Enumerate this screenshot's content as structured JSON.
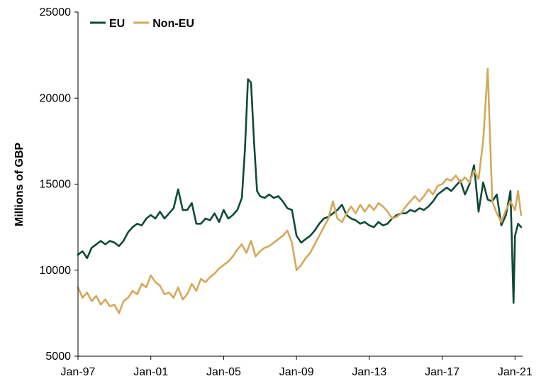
{
  "chart_data": {
    "type": "line",
    "title": "",
    "xlabel": "",
    "ylabel": "Millions of GBP",
    "ylim": [
      5000,
      25000
    ],
    "xlim": [
      "1997-01",
      "2021-06"
    ],
    "grid": false,
    "legend": "top-left",
    "x_ticks": [
      {
        "date": "1997-01",
        "label": "Jan-97"
      },
      {
        "date": "2001-01",
        "label": "Jan-01"
      },
      {
        "date": "2005-01",
        "label": "Jan-05"
      },
      {
        "date": "2009-01",
        "label": "Jan-09"
      },
      {
        "date": "2013-01",
        "label": "Jan-13"
      },
      {
        "date": "2017-01",
        "label": "Jan-17"
      },
      {
        "date": "2021-01",
        "label": "Jan-21"
      }
    ],
    "y_ticks": [
      {
        "value": 5000,
        "label": "5000"
      },
      {
        "value": 10000,
        "label": "10000"
      },
      {
        "value": 15000,
        "label": "15000"
      },
      {
        "value": 20000,
        "label": "20000"
      },
      {
        "value": 25000,
        "label": "25000"
      }
    ],
    "series": [
      {
        "name": "EU",
        "color": "#0d4a3a",
        "points": [
          [
            "1997-01",
            10900
          ],
          [
            "1997-04",
            11100
          ],
          [
            "1997-07",
            10700
          ],
          [
            "1997-10",
            11300
          ],
          [
            "1998-01",
            11500
          ],
          [
            "1998-04",
            11700
          ],
          [
            "1998-07",
            11500
          ],
          [
            "1998-10",
            11700
          ],
          [
            "1999-01",
            11600
          ],
          [
            "1999-04",
            11400
          ],
          [
            "1999-07",
            11700
          ],
          [
            "1999-10",
            12200
          ],
          [
            "2000-01",
            12500
          ],
          [
            "2000-04",
            12700
          ],
          [
            "2000-07",
            12600
          ],
          [
            "2000-10",
            13000
          ],
          [
            "2001-01",
            13200
          ],
          [
            "2001-04",
            13000
          ],
          [
            "2001-07",
            13400
          ],
          [
            "2001-10",
            13000
          ],
          [
            "2002-01",
            13300
          ],
          [
            "2002-04",
            13600
          ],
          [
            "2002-07",
            14700
          ],
          [
            "2002-10",
            13500
          ],
          [
            "2003-01",
            13500
          ],
          [
            "2003-04",
            13900
          ],
          [
            "2003-07",
            12700
          ],
          [
            "2003-10",
            12700
          ],
          [
            "2004-01",
            13000
          ],
          [
            "2004-04",
            12900
          ],
          [
            "2004-07",
            13300
          ],
          [
            "2004-10",
            12800
          ],
          [
            "2005-01",
            13500
          ],
          [
            "2005-04",
            13000
          ],
          [
            "2005-07",
            13200
          ],
          [
            "2005-10",
            13500
          ],
          [
            "2006-01",
            14200
          ],
          [
            "2006-03",
            17000
          ],
          [
            "2006-05",
            21100
          ],
          [
            "2006-07",
            20900
          ],
          [
            "2006-09",
            17500
          ],
          [
            "2006-11",
            14600
          ],
          [
            "2007-01",
            14300
          ],
          [
            "2007-04",
            14200
          ],
          [
            "2007-07",
            14400
          ],
          [
            "2007-10",
            14200
          ],
          [
            "2008-01",
            14300
          ],
          [
            "2008-04",
            14000
          ],
          [
            "2008-07",
            13600
          ],
          [
            "2008-10",
            13500
          ],
          [
            "2009-01",
            12000
          ],
          [
            "2009-04",
            11600
          ],
          [
            "2009-07",
            11800
          ],
          [
            "2009-10",
            12000
          ],
          [
            "2010-01",
            12300
          ],
          [
            "2010-04",
            12700
          ],
          [
            "2010-07",
            13000
          ],
          [
            "2010-10",
            13100
          ],
          [
            "2011-01",
            13300
          ],
          [
            "2011-04",
            13500
          ],
          [
            "2011-07",
            13800
          ],
          [
            "2011-10",
            13200
          ],
          [
            "2012-01",
            13000
          ],
          [
            "2012-04",
            12900
          ],
          [
            "2012-07",
            12700
          ],
          [
            "2012-10",
            12800
          ],
          [
            "2013-01",
            12600
          ],
          [
            "2013-04",
            12500
          ],
          [
            "2013-07",
            12800
          ],
          [
            "2013-10",
            12600
          ],
          [
            "2014-01",
            12700
          ],
          [
            "2014-04",
            13000
          ],
          [
            "2014-07",
            13200
          ],
          [
            "2014-10",
            13300
          ],
          [
            "2015-01",
            13300
          ],
          [
            "2015-04",
            13500
          ],
          [
            "2015-07",
            13400
          ],
          [
            "2015-10",
            13600
          ],
          [
            "2016-01",
            13500
          ],
          [
            "2016-04",
            13700
          ],
          [
            "2016-07",
            14000
          ],
          [
            "2016-10",
            14400
          ],
          [
            "2017-01",
            14600
          ],
          [
            "2017-04",
            14800
          ],
          [
            "2017-07",
            14600
          ],
          [
            "2017-10",
            14900
          ],
          [
            "2018-01",
            15200
          ],
          [
            "2018-04",
            14400
          ],
          [
            "2018-07",
            15000
          ],
          [
            "2018-10",
            16100
          ],
          [
            "2019-01",
            13400
          ],
          [
            "2019-04",
            15100
          ],
          [
            "2019-07",
            14100
          ],
          [
            "2019-10",
            14000
          ],
          [
            "2020-01",
            14400
          ],
          [
            "2020-04",
            12600
          ],
          [
            "2020-07",
            13200
          ],
          [
            "2020-10",
            14600
          ],
          [
            "2020-12",
            8100
          ],
          [
            "2021-01",
            12000
          ],
          [
            "2021-03",
            12700
          ],
          [
            "2021-05",
            12500
          ]
        ]
      },
      {
        "name": "Non-EU",
        "color": "#d4a85a",
        "points": [
          [
            "1997-01",
            9000
          ],
          [
            "1997-04",
            8400
          ],
          [
            "1997-07",
            8700
          ],
          [
            "1997-10",
            8200
          ],
          [
            "1998-01",
            8500
          ],
          [
            "1998-04",
            8000
          ],
          [
            "1998-07",
            8300
          ],
          [
            "1998-10",
            7900
          ],
          [
            "1999-01",
            8000
          ],
          [
            "1999-04",
            7500
          ],
          [
            "1999-07",
            8200
          ],
          [
            "1999-10",
            8400
          ],
          [
            "2000-01",
            8800
          ],
          [
            "2000-04",
            8600
          ],
          [
            "2000-07",
            9200
          ],
          [
            "2000-10",
            9000
          ],
          [
            "2001-01",
            9700
          ],
          [
            "2001-04",
            9300
          ],
          [
            "2001-07",
            9100
          ],
          [
            "2001-10",
            8600
          ],
          [
            "2002-01",
            8700
          ],
          [
            "2002-04",
            8400
          ],
          [
            "2002-07",
            9000
          ],
          [
            "2002-10",
            8300
          ],
          [
            "2003-01",
            8600
          ],
          [
            "2003-04",
            9200
          ],
          [
            "2003-07",
            8800
          ],
          [
            "2003-10",
            9500
          ],
          [
            "2004-01",
            9300
          ],
          [
            "2004-04",
            9600
          ],
          [
            "2004-07",
            9800
          ],
          [
            "2004-10",
            10100
          ],
          [
            "2005-01",
            10300
          ],
          [
            "2005-04",
            10500
          ],
          [
            "2005-07",
            10800
          ],
          [
            "2005-10",
            11200
          ],
          [
            "2006-01",
            11500
          ],
          [
            "2006-04",
            11000
          ],
          [
            "2006-07",
            11700
          ],
          [
            "2006-10",
            10800
          ],
          [
            "2007-01",
            11100
          ],
          [
            "2007-04",
            11300
          ],
          [
            "2007-07",
            11400
          ],
          [
            "2007-10",
            11600
          ],
          [
            "2008-01",
            11800
          ],
          [
            "2008-04",
            12000
          ],
          [
            "2008-07",
            12300
          ],
          [
            "2008-10",
            11600
          ],
          [
            "2009-01",
            10000
          ],
          [
            "2009-04",
            10300
          ],
          [
            "2009-07",
            10700
          ],
          [
            "2009-10",
            11000
          ],
          [
            "2010-01",
            11500
          ],
          [
            "2010-04",
            12000
          ],
          [
            "2010-07",
            12500
          ],
          [
            "2010-10",
            13000
          ],
          [
            "2011-01",
            14000
          ],
          [
            "2011-04",
            13000
          ],
          [
            "2011-07",
            12800
          ],
          [
            "2011-10",
            13300
          ],
          [
            "2012-01",
            13700
          ],
          [
            "2012-04",
            13300
          ],
          [
            "2012-07",
            13800
          ],
          [
            "2012-10",
            13400
          ],
          [
            "2013-01",
            13800
          ],
          [
            "2013-04",
            13500
          ],
          [
            "2013-07",
            13900
          ],
          [
            "2013-10",
            13700
          ],
          [
            "2014-01",
            13400
          ],
          [
            "2014-04",
            13000
          ],
          [
            "2014-07",
            13100
          ],
          [
            "2014-10",
            13300
          ],
          [
            "2015-01",
            13700
          ],
          [
            "2015-04",
            14000
          ],
          [
            "2015-07",
            14300
          ],
          [
            "2015-10",
            14000
          ],
          [
            "2016-01",
            14300
          ],
          [
            "2016-04",
            14700
          ],
          [
            "2016-07",
            14400
          ],
          [
            "2016-10",
            14900
          ],
          [
            "2017-01",
            15000
          ],
          [
            "2017-04",
            15300
          ],
          [
            "2017-07",
            15200
          ],
          [
            "2017-10",
            15500
          ],
          [
            "2018-01",
            15100
          ],
          [
            "2018-04",
            15400
          ],
          [
            "2018-07",
            15100
          ],
          [
            "2018-10",
            15800
          ],
          [
            "2019-01",
            15300
          ],
          [
            "2019-04",
            17500
          ],
          [
            "2019-07",
            21700
          ],
          [
            "2019-10",
            14000
          ],
          [
            "2020-01",
            13300
          ],
          [
            "2020-04",
            12800
          ],
          [
            "2020-07",
            13500
          ],
          [
            "2020-10",
            14000
          ],
          [
            "2021-01",
            13500
          ],
          [
            "2021-03",
            14600
          ],
          [
            "2021-05",
            13200
          ]
        ]
      }
    ]
  }
}
